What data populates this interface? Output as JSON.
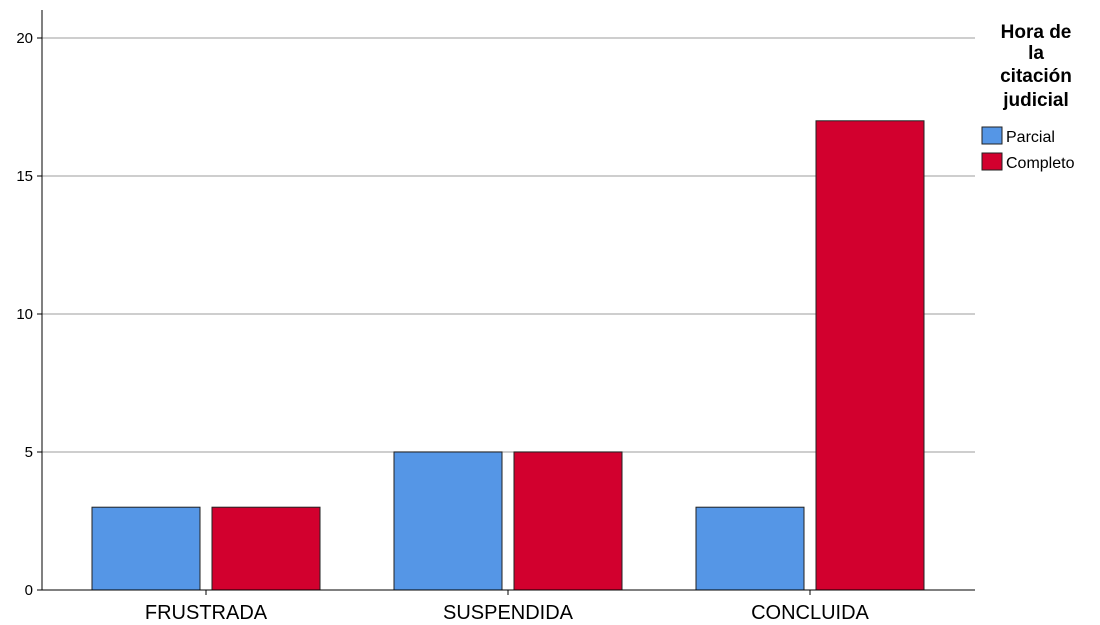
{
  "chart_data": {
    "type": "bar",
    "categories": [
      "FRUSTRADA",
      "SUSPENDIDA",
      "CONCLUIDA"
    ],
    "series": [
      {
        "name": "Parcial",
        "values": [
          3,
          5,
          3
        ],
        "color": "#5596e6"
      },
      {
        "name": "Completo",
        "values": [
          3,
          5,
          17
        ],
        "color": "#d2002e"
      }
    ],
    "yticks": [
      0,
      5,
      10,
      15,
      20
    ],
    "ylim": [
      0,
      21
    ],
    "grid": true,
    "legend": {
      "title_lines": [
        "Hora de",
        "la",
        "citación",
        "judicial"
      ],
      "placement": "top-right"
    }
  }
}
